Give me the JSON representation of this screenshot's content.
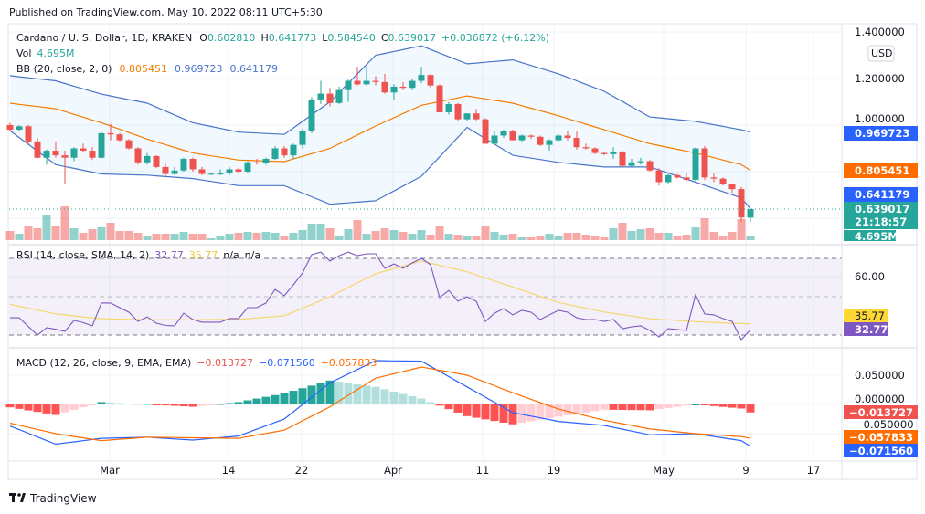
{
  "published": "Published on TradingView.com, May 10, 2022 08:11 UTC+5:30",
  "legend": {
    "symbol": "Cardano / U. S. Dollar, 1D, KRAKEN",
    "o_label": "O",
    "o": "0.602810",
    "h_label": "H",
    "h": "0.641773",
    "l_label": "L",
    "l": "0.584540",
    "c_label": "C",
    "c": "0.639017",
    "change": "+0.036872 (+6.12%)",
    "vol_label": "Vol",
    "vol": "4.695M",
    "bb_label": "BB (20, close, 2, 0)",
    "bb_mid": "0.805451",
    "bb_upper": "0.969723",
    "bb_lower": "0.641179",
    "rsi_label": "RSI (14, close, SMA, 14, 2)",
    "rsi": "32.77",
    "rsi_ma": "35.77",
    "rsi_na1": "n/a",
    "rsi_na2": "n/a",
    "macd_label": "MACD (12, 26, close, 9, EMA, EMA)",
    "macd_hist": "−0.013727",
    "macd": "−0.071560",
    "macd_signal": "−0.057833"
  },
  "currency": "USD",
  "price_axis": [
    "1.400000",
    "1.200000",
    "1.000000"
  ],
  "rsi_axis": [
    "60.00"
  ],
  "macd_axis": [
    "0.050000",
    "0.000000",
    "−0.050000"
  ],
  "badges": {
    "bb_upper": "0.969723",
    "bb_mid": "0.805451",
    "bb_lower": "0.641179",
    "last_price": "0.639017",
    "countdown": "21:18:57",
    "volume": "4.695M",
    "rsi_ma": "35.77",
    "rsi": "32.77",
    "macd_hist": "−0.013727",
    "macd_signal": "−0.057833",
    "macd": "−0.071560"
  },
  "time_axis": [
    "Mar",
    "14",
    "22",
    "Apr",
    "11",
    "19",
    "May",
    "9",
    "17"
  ],
  "logo_text": "TradingView",
  "colors": {
    "up": "#26a69a",
    "down": "#ef5350",
    "bb_band": "#4a74c9",
    "bb_mid": "#f57c00",
    "rsi": "#7e57c2",
    "rsi_ma": "#f5d76e",
    "macd": "#2962ff",
    "signal": "#ff6d00",
    "hist_up_strong": "#26a69a",
    "hist_up_weak": "#b2dfdb",
    "hist_down_strong": "#ff5252",
    "hist_down_weak": "#ffcdd2"
  },
  "chart_data": [
    {
      "type": "candlestick",
      "title": "Cardano / U. S. Dollar, 1D, KRAKEN",
      "y_range": [
        0.55,
        1.42
      ],
      "ohlc": [
        [
          1.0,
          1.01,
          0.975,
          0.98
        ],
        [
          0.98,
          1.0,
          0.975,
          0.995
        ],
        [
          0.995,
          1.0,
          0.92,
          0.93
        ],
        [
          0.93,
          0.945,
          0.855,
          0.86
        ],
        [
          0.86,
          0.895,
          0.83,
          0.89
        ],
        [
          0.89,
          0.93,
          0.86,
          0.87
        ],
        [
          0.87,
          0.89,
          0.745,
          0.86
        ],
        [
          0.86,
          0.905,
          0.845,
          0.9
        ],
        [
          0.9,
          0.92,
          0.885,
          0.89
        ],
        [
          0.89,
          0.905,
          0.85,
          0.86
        ],
        [
          0.86,
          0.97,
          0.855,
          0.965
        ],
        [
          0.965,
          1.005,
          0.935,
          0.96
        ],
        [
          0.96,
          0.965,
          0.93,
          0.935
        ],
        [
          0.935,
          0.94,
          0.895,
          0.9
        ],
        [
          0.9,
          0.905,
          0.83,
          0.84
        ],
        [
          0.84,
          0.88,
          0.83,
          0.867
        ],
        [
          0.867,
          0.87,
          0.815,
          0.82
        ],
        [
          0.82,
          0.835,
          0.78,
          0.79
        ],
        [
          0.79,
          0.82,
          0.785,
          0.805
        ],
        [
          0.805,
          0.86,
          0.8,
          0.855
        ],
        [
          0.855,
          0.86,
          0.8,
          0.81
        ],
        [
          0.81,
          0.82,
          0.785,
          0.79
        ],
        [
          0.79,
          0.795,
          0.785,
          0.791
        ],
        [
          0.791,
          0.81,
          0.785,
          0.792
        ],
        [
          0.792,
          0.82,
          0.785,
          0.81
        ],
        [
          0.81,
          0.815,
          0.795,
          0.8
        ],
        [
          0.8,
          0.845,
          0.795,
          0.84
        ],
        [
          0.84,
          0.855,
          0.83,
          0.838
        ],
        [
          0.838,
          0.86,
          0.83,
          0.855
        ],
        [
          0.855,
          0.91,
          0.85,
          0.9
        ],
        [
          0.9,
          0.91,
          0.86,
          0.87
        ],
        [
          0.87,
          0.92,
          0.855,
          0.915
        ],
        [
          0.915,
          0.985,
          0.9,
          0.975
        ],
        [
          0.975,
          1.12,
          0.965,
          1.11
        ],
        [
          1.11,
          1.19,
          1.09,
          1.135
        ],
        [
          1.135,
          1.16,
          1.08,
          1.095
        ],
        [
          1.095,
          1.165,
          1.09,
          1.15
        ],
        [
          1.15,
          1.195,
          1.1,
          1.19
        ],
        [
          1.19,
          1.25,
          1.17,
          1.175
        ],
        [
          1.175,
          1.25,
          1.17,
          1.19
        ],
        [
          1.19,
          1.21,
          1.17,
          1.185
        ],
        [
          1.185,
          1.22,
          1.135,
          1.14
        ],
        [
          1.14,
          1.175,
          1.11,
          1.165
        ],
        [
          1.165,
          1.185,
          1.15,
          1.16
        ],
        [
          1.16,
          1.2,
          1.15,
          1.19
        ],
        [
          1.19,
          1.25,
          1.18,
          1.215
        ],
        [
          1.215,
          1.22,
          1.16,
          1.17
        ],
        [
          1.17,
          1.175,
          1.055,
          1.055
        ],
        [
          1.055,
          1.1,
          1.045,
          1.09
        ],
        [
          1.09,
          1.095,
          1.02,
          1.025
        ],
        [
          1.025,
          1.05,
          1.02,
          1.05
        ],
        [
          1.05,
          1.07,
          1.02,
          1.025
        ],
        [
          1.025,
          1.03,
          0.92,
          0.92
        ],
        [
          0.92,
          0.975,
          0.915,
          0.955
        ],
        [
          0.955,
          0.98,
          0.945,
          0.975
        ],
        [
          0.975,
          0.98,
          0.935,
          0.935
        ],
        [
          0.935,
          0.96,
          0.93,
          0.955
        ],
        [
          0.955,
          0.96,
          0.94,
          0.95
        ],
        [
          0.95,
          0.955,
          0.91,
          0.915
        ],
        [
          0.915,
          0.94,
          0.89,
          0.935
        ],
        [
          0.935,
          0.96,
          0.93,
          0.955
        ],
        [
          0.955,
          0.975,
          0.935,
          0.945
        ],
        [
          0.945,
          0.975,
          0.895,
          0.905
        ],
        [
          0.905,
          0.92,
          0.895,
          0.9
        ],
        [
          0.9,
          0.905,
          0.875,
          0.88
        ],
        [
          0.88,
          0.885,
          0.87,
          0.875
        ],
        [
          0.875,
          0.905,
          0.855,
          0.885
        ],
        [
          0.885,
          0.89,
          0.82,
          0.825
        ],
        [
          0.825,
          0.855,
          0.82,
          0.84
        ],
        [
          0.84,
          0.86,
          0.83,
          0.845
        ],
        [
          0.845,
          0.85,
          0.8,
          0.805
        ],
        [
          0.805,
          0.815,
          0.74,
          0.755
        ],
        [
          0.755,
          0.79,
          0.75,
          0.785
        ],
        [
          0.785,
          0.79,
          0.77,
          0.775
        ],
        [
          0.775,
          0.795,
          0.76,
          0.765
        ],
        [
          0.765,
          0.905,
          0.76,
          0.9
        ],
        [
          0.9,
          0.91,
          0.765,
          0.775
        ],
        [
          0.775,
          0.795,
          0.755,
          0.77
        ],
        [
          0.77,
          0.775,
          0.74,
          0.745
        ],
        [
          0.745,
          0.75,
          0.71,
          0.725
        ],
        [
          0.725,
          0.735,
          0.585,
          0.603
        ],
        [
          0.60281,
          0.641773,
          0.58454,
          0.639017
        ]
      ],
      "volume_millions": [
        10,
        7,
        16,
        13,
        27,
        16,
        37,
        13,
        8,
        12,
        14,
        19,
        10,
        10,
        8,
        4,
        7,
        7,
        7,
        9,
        7,
        7,
        2,
        5,
        7,
        8,
        9,
        8,
        9,
        8,
        4,
        8,
        11,
        18,
        18,
        13,
        5,
        12,
        22,
        7,
        10,
        13,
        11,
        9,
        7,
        11,
        6,
        15,
        7,
        6,
        5,
        4,
        15,
        9,
        6,
        7,
        3,
        3,
        5,
        7,
        4,
        8,
        8,
        6,
        4,
        3,
        13,
        19,
        10,
        12,
        13,
        8,
        8,
        5,
        6,
        14,
        24,
        9,
        4,
        9,
        23,
        4.695
      ],
      "indicator_sample_every": 5,
      "bb_upper": [
        1.212,
        1.19,
        1.133,
        1.094,
        1.01,
        0.97,
        0.96,
        1.1,
        1.3,
        1.34,
        1.263,
        1.28,
        1.22,
        1.145,
        1.035,
        1.016,
        0.98,
        0.969723
      ],
      "bb_mid": [
        1.094,
        1.07,
        1.01,
        0.94,
        0.88,
        0.85,
        0.843,
        0.9,
        0.996,
        1.085,
        1.125,
        1.094,
        1.04,
        0.98,
        0.92,
        0.88,
        0.83,
        0.805451
      ],
      "bb_lower": [
        0.976,
        0.83,
        0.79,
        0.785,
        0.77,
        0.74,
        0.74,
        0.66,
        0.675,
        0.78,
        0.99,
        0.87,
        0.84,
        0.82,
        0.82,
        0.755,
        0.687,
        0.641179
      ]
    },
    {
      "type": "line",
      "title": "RSI (14, close, SMA, 14, 2)",
      "y_range": [
        20,
        80
      ],
      "bands": [
        70,
        50,
        30
      ],
      "rsi": [
        39,
        39,
        34.5,
        30,
        33.8,
        33,
        31.9,
        37.6,
        36.5,
        34.8,
        46.7,
        46.7,
        44.3,
        41.9,
        37.1,
        39.5,
        36.2,
        35,
        34.8,
        41.4,
        38.1,
        36.7,
        36.7,
        36.7,
        38.6,
        38.6,
        44.3,
        44.3,
        46.7,
        53.8,
        50.5,
        56.2,
        62.4,
        71.9,
        73.3,
        68.6,
        71.4,
        73.3,
        71.4,
        72.4,
        72.4,
        64.8,
        67.1,
        64.8,
        67.6,
        70,
        66.7,
        49.5,
        53.3,
        47.6,
        50,
        47.6,
        37.1,
        41.4,
        43.8,
        40.5,
        42.9,
        41.9,
        38.1,
        40.5,
        42.9,
        41.9,
        39.0,
        38.1,
        38.1,
        37.1,
        38.1,
        33.3,
        34.3,
        34.8,
        32.4,
        29,
        33.3,
        32.9,
        32.4,
        51,
        41,
        40.5,
        38.6,
        37.1,
        27.6,
        32.77
      ],
      "rsi_ma_sample_every": 5,
      "rsi_ma": [
        46,
        41,
        38.5,
        38,
        38,
        38.2,
        40,
        50,
        62,
        68.6,
        63,
        55,
        47,
        42,
        38.5,
        37,
        36,
        35.77
      ]
    },
    {
      "type": "line",
      "title": "MACD (12, 26, close, 9, EMA, EMA)",
      "y_range": [
        -0.09,
        0.09
      ],
      "sample_every": 5,
      "macd": [
        -0.037,
        -0.068,
        -0.058,
        -0.056,
        -0.061,
        -0.054,
        -0.025,
        0.037,
        0.075,
        0.074,
        0.03,
        -0.014,
        -0.029,
        -0.036,
        -0.052,
        -0.05,
        -0.062,
        -0.07156
      ],
      "signal": [
        -0.032,
        -0.05,
        -0.062,
        -0.056,
        -0.057,
        -0.058,
        -0.044,
        -0.004,
        0.045,
        0.064,
        0.05,
        0.02,
        -0.008,
        -0.027,
        -0.042,
        -0.05,
        -0.055,
        -0.057833
      ]
    }
  ]
}
